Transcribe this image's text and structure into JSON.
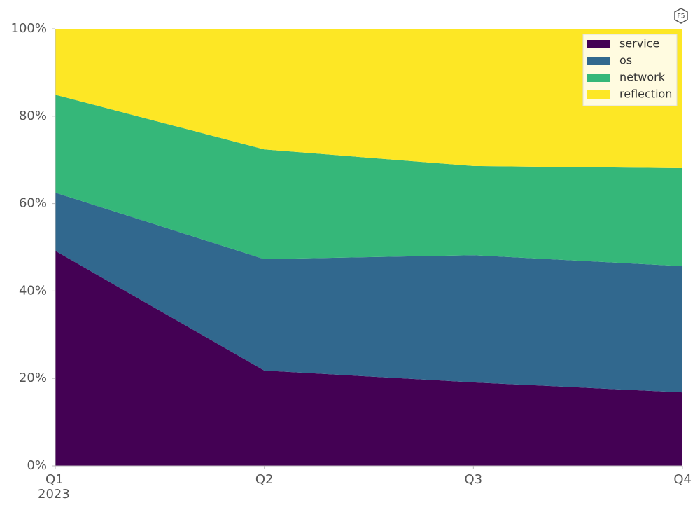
{
  "chart_data": {
    "type": "stacked_area",
    "categories": [
      "Q1",
      "Q2",
      "Q3",
      "Q4"
    ],
    "x_sublabel": "2023",
    "logo": "F5",
    "series": [
      {
        "name": "service",
        "color": "#440154",
        "values": [
          49.2,
          21.8,
          19.1,
          16.8
        ]
      },
      {
        "name": "os",
        "color": "#31688e",
        "values": [
          13.3,
          25.5,
          29.1,
          28.9
        ]
      },
      {
        "name": "network",
        "color": "#35b779",
        "values": [
          22.4,
          25.1,
          20.4,
          22.4
        ]
      },
      {
        "name": "reflection",
        "color": "#fde725",
        "values": [
          15.1,
          27.6,
          31.4,
          31.9
        ]
      }
    ],
    "ylim": [
      0,
      100
    ],
    "yticks": [
      {
        "value": 0,
        "label": "0%"
      },
      {
        "value": 20,
        "label": "20%"
      },
      {
        "value": 40,
        "label": "40%"
      },
      {
        "value": 60,
        "label": "60%"
      },
      {
        "value": 80,
        "label": "80%"
      },
      {
        "value": 100,
        "label": "100%"
      }
    ],
    "legend": "upper right"
  }
}
